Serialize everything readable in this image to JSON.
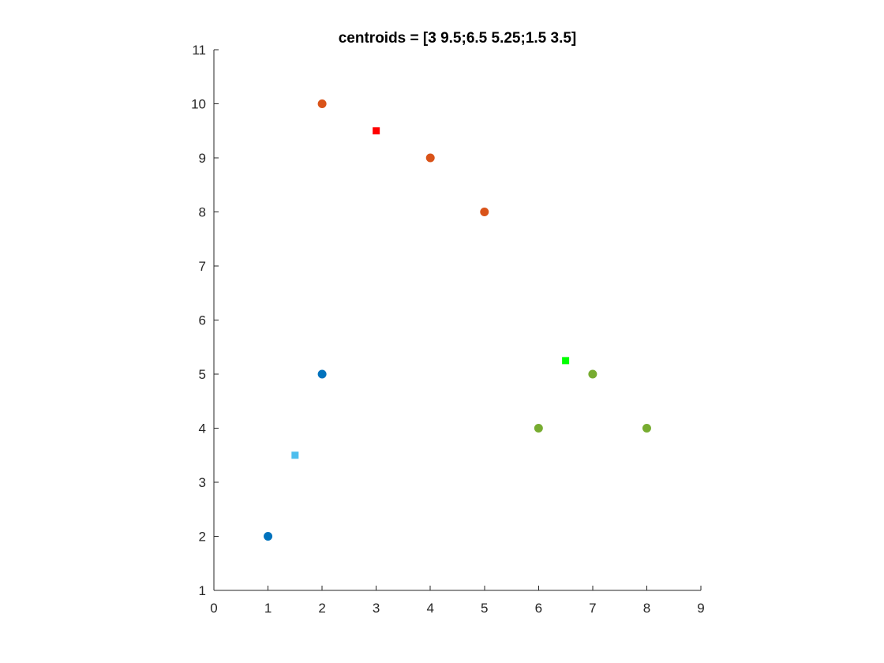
{
  "chart_data": {
    "type": "scatter",
    "title": "centroids = [3 9.5;6.5 5.25;1.5 3.5]",
    "xlabel": "",
    "ylabel": "",
    "xlim": [
      0,
      9
    ],
    "ylim": [
      1,
      11
    ],
    "xticks": [
      0,
      1,
      2,
      3,
      4,
      5,
      6,
      7,
      8,
      9
    ],
    "yticks": [
      1,
      2,
      3,
      4,
      5,
      6,
      7,
      8,
      9,
      10,
      11
    ],
    "grid": false,
    "legend": "none",
    "series": [
      {
        "marker": "circle",
        "color": "#0072BD",
        "points": [
          [
            1,
            2
          ],
          [
            2,
            5
          ]
        ]
      },
      {
        "marker": "circle",
        "color": "#D95319",
        "points": [
          [
            2,
            10
          ],
          [
            4,
            9
          ],
          [
            5,
            8
          ]
        ]
      },
      {
        "marker": "circle",
        "color": "#77AC30",
        "points": [
          [
            6,
            4
          ],
          [
            7,
            5
          ],
          [
            8,
            4
          ]
        ]
      },
      {
        "marker": "square",
        "color": "#FF0000",
        "points": [
          [
            3,
            9.5
          ]
        ]
      },
      {
        "marker": "square",
        "color": "#00FF00",
        "points": [
          [
            6.5,
            5.25
          ]
        ]
      },
      {
        "marker": "square",
        "color": "#4DBEEE",
        "points": [
          [
            1.5,
            3.5
          ]
        ]
      }
    ]
  }
}
